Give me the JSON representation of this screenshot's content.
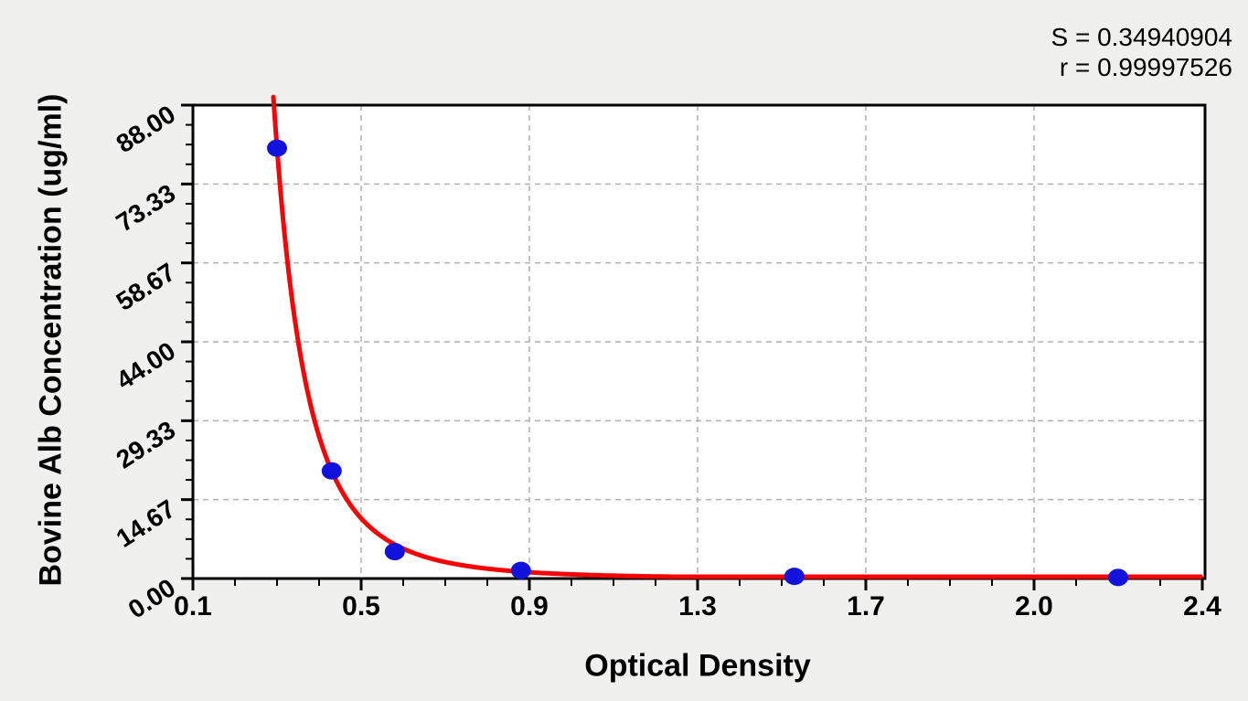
{
  "stats_panel": {
    "s_line": "S = 0.34940904",
    "r_line": "r = 0.99997526"
  },
  "chart_data": {
    "type": "scatter",
    "title": "",
    "xlabel": "Optical Density",
    "ylabel": "Bovine Alb Concentration (ug/ml)",
    "xlim": [
      0.1,
      2.4
    ],
    "ylim": [
      0,
      88
    ],
    "x_tick_labels": [
      "0.1",
      "0.5",
      "0.9",
      "1.3",
      "1.7",
      "2.0",
      "2.4"
    ],
    "x_tick_values": [
      0.1,
      0.5,
      0.9,
      1.3,
      1.7,
      2.0,
      2.4
    ],
    "y_tick_labels": [
      "0.00",
      "14.67",
      "29.33",
      "44.00",
      "58.67",
      "73.33",
      "88.00"
    ],
    "y_tick_values": [
      0,
      14.67,
      29.33,
      44.0,
      58.67,
      73.33,
      88.0
    ],
    "minor_ticks_per_major_x": 3,
    "minor_ticks_per_major_y": 3,
    "grid": "dashed gray lines at interior major ticks, both axes",
    "legend": "none",
    "points": [
      {
        "od": 0.3,
        "concentration": 80
      },
      {
        "od": 0.43,
        "concentration": 20
      },
      {
        "od": 0.58,
        "concentration": 5
      },
      {
        "od": 0.88,
        "concentration": 1.5
      },
      {
        "od": 1.53,
        "concentration": 0.4
      },
      {
        "od": 2.2,
        "concentration": 0.2
      }
    ],
    "fit_curve": {
      "model": "power-decay approximation: conc = a * od^(-b)",
      "a": 0.777,
      "b": 3.85,
      "od_start": 0.2914,
      "od_end": 2.4,
      "clip_conc_max": 89.5
    },
    "colors": {
      "curve": "#f40404",
      "point": "#1212dd",
      "grid": "#b0b0b0",
      "axis": "#000000",
      "plot_bg": "#ffffff",
      "page_bg": "#f0f0ef",
      "text": "#000000"
    }
  }
}
